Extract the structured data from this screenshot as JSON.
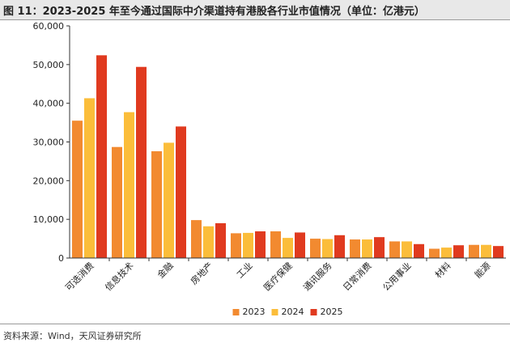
{
  "header": {
    "title": "图 11：2023-2025 年至今通过国际中介渠道持有港股各行业市值情况（单位：亿港元）"
  },
  "footer": {
    "source": "资料来源：Wind，天风证券研究所"
  },
  "chart_data": {
    "type": "bar",
    "categories": [
      "可选消费",
      "信息技术",
      "金融",
      "房地产",
      "工业",
      "医疗保健",
      "通讯服务",
      "日常消费",
      "公用事业",
      "材料",
      "能源"
    ],
    "series": [
      {
        "name": "2023",
        "color": "#f28a30",
        "values": [
          35500,
          28700,
          27600,
          9800,
          6400,
          6900,
          5000,
          4800,
          4300,
          2400,
          3400
        ]
      },
      {
        "name": "2024",
        "color": "#fbbd3a",
        "values": [
          41300,
          37700,
          29800,
          8200,
          6500,
          5200,
          4900,
          4800,
          4300,
          2700,
          3400
        ]
      },
      {
        "name": "2025",
        "color": "#e03a1f",
        "values": [
          52400,
          49400,
          34000,
          9000,
          6900,
          6600,
          5900,
          5400,
          3600,
          3300,
          3100
        ]
      }
    ],
    "yticks": [
      "0",
      "10,000",
      "20,000",
      "30,000",
      "40,000",
      "50,000",
      "60,000"
    ],
    "ylim": [
      0,
      60000
    ],
    "legend": "bottom-center",
    "grid": false
  }
}
